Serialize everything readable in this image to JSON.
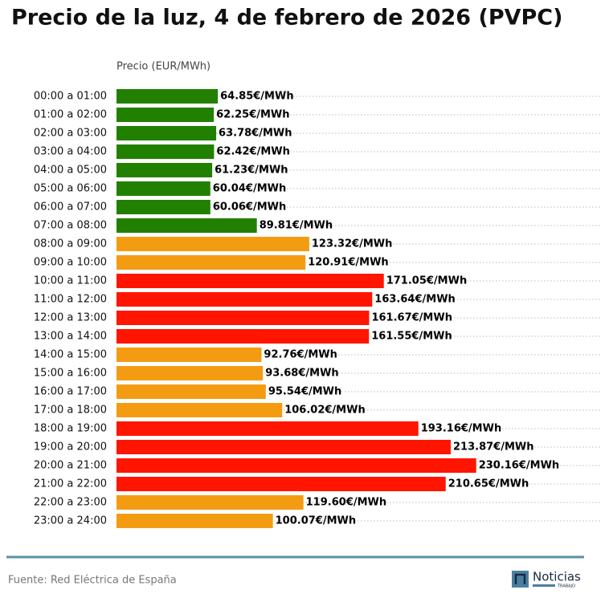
{
  "chart_data": {
    "type": "bar",
    "orientation": "horizontal",
    "title": "Precio de la luz, 4 de febrero de 2026 (PVPC)",
    "x_label": "Precio (EUR/MWh)",
    "categories": [
      "00:00 a 01:00",
      "01:00 a 02:00",
      "02:00 a 03:00",
      "03:00 a 04:00",
      "04:00 a 05:00",
      "05:00 a 06:00",
      "06:00 a 07:00",
      "07:00 a 08:00",
      "08:00 a 09:00",
      "09:00 a 10:00",
      "10:00 a 11:00",
      "11:00 a 12:00",
      "12:00 a 13:00",
      "13:00 a 14:00",
      "14:00 a 15:00",
      "15:00 a 16:00",
      "16:00 a 17:00",
      "17:00 a 18:00",
      "18:00 a 19:00",
      "19:00 a 20:00",
      "20:00 a 21:00",
      "21:00 a 22:00",
      "22:00 a 23:00",
      "23:00 a 24:00"
    ],
    "values": [
      64.85,
      62.25,
      63.78,
      62.42,
      61.23,
      60.04,
      60.06,
      89.81,
      123.32,
      120.91,
      171.05,
      163.64,
      161.67,
      161.55,
      92.76,
      93.68,
      95.54,
      106.02,
      193.16,
      213.87,
      230.16,
      210.65,
      119.6,
      100.07
    ],
    "value_labels": [
      "64.85€/MWh",
      "62.25€/MWh",
      "63.78€/MWh",
      "62.42€/MWh",
      "61.23€/MWh",
      "60.04€/MWh",
      "60.06€/MWh",
      "89.81€/MWh",
      "123.32€/MWh",
      "120.91€/MWh",
      "171.05€/MWh",
      "163.64€/MWh",
      "161.67€/MWh",
      "161.55€/MWh",
      "92.76€/MWh",
      "93.68€/MWh",
      "95.54€/MWh",
      "106.02€/MWh",
      "193.16€/MWh",
      "213.87€/MWh",
      "230.16€/MWh",
      "210.65€/MWh",
      "119.60€/MWh",
      "100.07€/MWh"
    ],
    "colors": [
      "#228000",
      "#228000",
      "#228000",
      "#228000",
      "#228000",
      "#228000",
      "#228000",
      "#228000",
      "#f39c12",
      "#f39c12",
      "#ff1500",
      "#ff1500",
      "#ff1500",
      "#ff1500",
      "#f39c12",
      "#f39c12",
      "#f39c12",
      "#f39c12",
      "#ff1500",
      "#ff1500",
      "#ff1500",
      "#ff1500",
      "#f39c12",
      "#f39c12"
    ],
    "xlim": [
      0,
      310
    ]
  },
  "source": "Fuente: Red Eléctrica de España",
  "logo": {
    "text": "Noticias",
    "sub": "TRABAJO"
  }
}
